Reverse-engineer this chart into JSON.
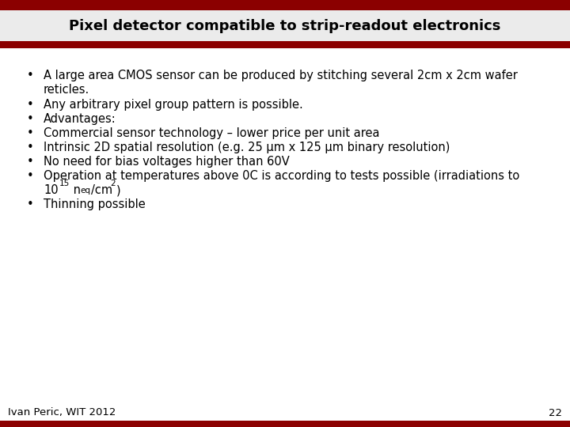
{
  "title": "Pixel detector compatible to strip-readout electronics",
  "title_fontsize": 13,
  "title_color": "#000000",
  "header_bar_color": "#8B0000",
  "bg_color": "#ffffff",
  "header_bg_color": "#ebebeb",
  "bullet_color": "#000000",
  "bullet_fontsize": 10.5,
  "bullet_symbol": "•",
  "footer_text": "Ivan Peric, WIT 2012",
  "footer_number": "22",
  "footer_fontsize": 9.5,
  "line1_a": "A large area CMOS sensor can be produced by stitching several 2cm x 2cm wafer",
  "line1_b": "reticles.",
  "line2": "Any arbitrary pixel group pattern is possible.",
  "line3": "Advantages:",
  "line4": "Commercial sensor technology – lower price per unit area",
  "line5": "Intrinsic 2D spatial resolution (e.g. 25 μm x 125 μm binary resolution)",
  "line6": "No need for bias voltages higher than 60V",
  "line7a": "Operation at temperatures above 0C is according to tests possible (irradiations to",
  "line7b_pre": "10",
  "line7b_sup": "15",
  "line7b_mid": " n",
  "line7b_sub": "eq",
  "line7b_end": "/cm",
  "line7b_sup2": "2",
  "line7b_close": ")",
  "line8": "Thinning possible"
}
